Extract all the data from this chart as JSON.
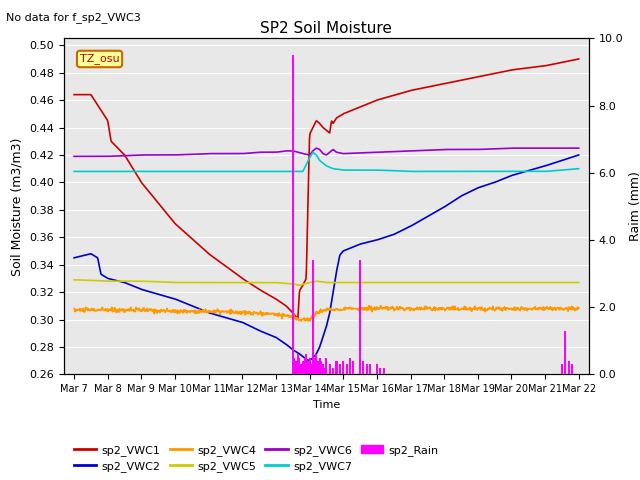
{
  "title": "SP2 Soil Moisture",
  "subtitle": "No data for f_sp2_VWC3",
  "ylabel_left": "Soil Moisture (m3/m3)",
  "ylabel_right": "Raim (mm)",
  "xlabel": "Time",
  "ylim_left": [
    0.26,
    0.505
  ],
  "ylim_right": [
    0.0,
    10.0
  ],
  "yticks_left": [
    0.26,
    0.28,
    0.3,
    0.32,
    0.34,
    0.36,
    0.38,
    0.4,
    0.42,
    0.44,
    0.46,
    0.48,
    0.5
  ],
  "yticks_right": [
    0.0,
    2.0,
    4.0,
    6.0,
    8.0,
    10.0
  ],
  "tz_label": "TZ_osu",
  "bg_color": "#e8e8e8",
  "grid_color": "white",
  "colors": {
    "sp2_VWC1": "#cc0000",
    "sp2_VWC2": "#0000cc",
    "sp2_VWC4": "#ff9900",
    "sp2_VWC5": "#cccc00",
    "sp2_VWC6": "#9900cc",
    "sp2_VWC7": "#00cccc",
    "sp2_Rain": "#ff00ff"
  },
  "x_tick_labels": [
    "Mar 7",
    "Mar 8",
    "Mar 9",
    "Mar 10",
    "Mar 11",
    "Mar 12",
    "Mar 13",
    "Mar 14",
    "Mar 15",
    "Mar 16",
    "Mar 17",
    "Mar 18",
    "Mar 19",
    "Mar 20",
    "Mar 21",
    "Mar 22"
  ]
}
